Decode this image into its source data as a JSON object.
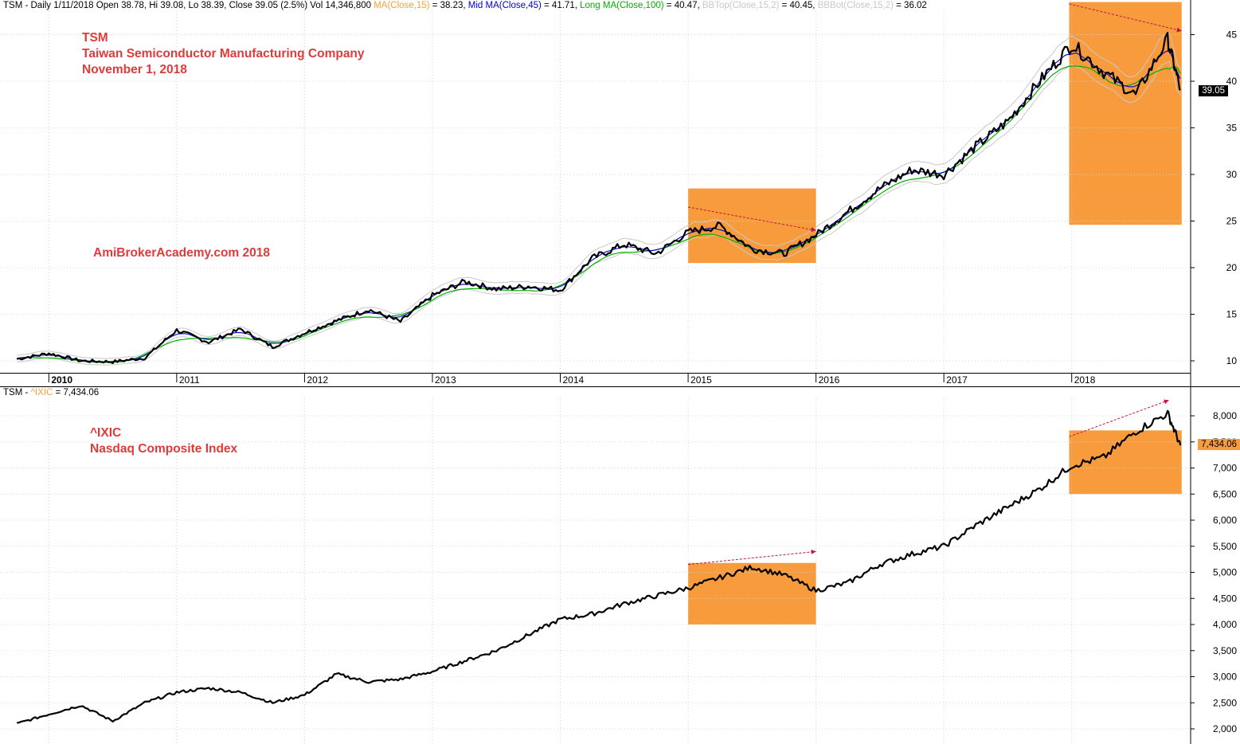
{
  "colors": {
    "background": "#ffffff",
    "price": "#000000",
    "ma_short": "#f7a135",
    "ma_mid": "#0000cc",
    "ma_long": "#00b000",
    "bollinger": "#c8c8c8",
    "highlight": "#f79b3c",
    "trend_arrow": "#c0154a",
    "annotation": "#e03b3b"
  },
  "header": {
    "ticker": "TSM",
    "info": " - Daily 1/11/2018 Open 38.78, Hi 39.08, Lo 38.39, Close 39.05 (2.5%) Vol 14,346,800 ",
    "ma_short_label": "MA(Close,15)",
    "ma_short_value": " = 38.23, ",
    "ma_mid_label": "Mid MA(Close,45)",
    "ma_mid_value": " = 41.71, ",
    "ma_long_label": "Long MA(Close,100)",
    "ma_long_value": " = 40.47, ",
    "bbtop_label": "BBTop(Close,15,2)",
    "bbtop_value": " = 40.45, ",
    "bbbot_label": "BBBot(Close,15,2)",
    "bbbot_value": " = 36.02"
  },
  "header2": {
    "ticker": "TSM - ",
    "symbol": "^IXIC",
    "value": " = 7,434.06"
  },
  "annotations": {
    "tsm_line1": "TSM",
    "tsm_line2": "Taiwan Semiconductor Manufacturing Company",
    "tsm_line3": "November 1, 2018",
    "watermark": "AmiBrokerAcademy.com  2018",
    "ixic_line1": "^IXIC",
    "ixic_line2": "Nasdaq Composite Index"
  },
  "last_value_tags": {
    "tsm": "39.05",
    "ixic": "7,434.06"
  },
  "chart_data": [
    {
      "type": "line",
      "name": "TSM",
      "x_tick_labels": [
        "2010",
        "2011",
        "2012",
        "2013",
        "2014",
        "2015",
        "2016",
        "2017",
        "2018"
      ],
      "y_ticks": [
        10,
        15,
        20,
        25,
        30,
        35,
        40,
        45
      ],
      "ylim": [
        8,
        48.5
      ],
      "grid": true,
      "series": [
        {
          "name": "",
          "x": [
            2009.75,
            2010.0,
            2010.25,
            2010.5,
            2010.75,
            2011.0,
            2011.25,
            2011.5,
            2011.75,
            2012.0,
            2012.25,
            2012.5,
            2012.75,
            2013.0,
            2013.25,
            2013.5,
            2013.75,
            2014.0,
            2014.25,
            2014.5,
            2014.75,
            2015.0,
            2015.25,
            2015.5,
            2015.75,
            2016.0,
            2016.25,
            2016.5,
            2016.75,
            2017.0,
            2017.25,
            2017.5,
            2017.75,
            2018.0,
            2018.25,
            2018.5,
            2018.75,
            2018.85
          ],
          "values": [
            10.2,
            10.8,
            10.0,
            9.9,
            10.3,
            13.3,
            12.0,
            13.4,
            11.5,
            13.0,
            14.3,
            15.5,
            14.2,
            17.0,
            18.5,
            17.7,
            18.0,
            17.6,
            21.0,
            22.5,
            21.5,
            23.8,
            24.5,
            22.0,
            21.5,
            23.5,
            26.0,
            28.5,
            30.5,
            30.0,
            33.0,
            35.7,
            40.0,
            44.0,
            41.0,
            38.5,
            44.5,
            39.05
          ]
        }
      ]
    },
    {
      "type": "line",
      "name": "^IXIC",
      "x_tick_labels": [],
      "y_ticks": [
        2000,
        2500,
        3000,
        3500,
        4000,
        4500,
        5000,
        5500,
        6000,
        6500,
        7000,
        7500,
        8000
      ],
      "ylim": [
        1800,
        8400
      ],
      "grid": true,
      "series": [
        {
          "name": "",
          "x": [
            2009.75,
            2010.0,
            2010.25,
            2010.5,
            2010.75,
            2011.0,
            2011.25,
            2011.5,
            2011.75,
            2012.0,
            2012.25,
            2012.5,
            2012.75,
            2013.0,
            2013.25,
            2013.5,
            2013.75,
            2014.0,
            2014.25,
            2014.5,
            2014.75,
            2015.0,
            2015.25,
            2015.5,
            2015.75,
            2016.0,
            2016.25,
            2016.5,
            2016.75,
            2017.0,
            2017.25,
            2017.5,
            2017.75,
            2018.0,
            2018.25,
            2018.5,
            2018.75,
            2018.85
          ],
          "values": [
            2100,
            2280,
            2450,
            2150,
            2500,
            2700,
            2780,
            2700,
            2500,
            2650,
            3050,
            2900,
            2950,
            3100,
            3300,
            3500,
            3800,
            4100,
            4200,
            4400,
            4550,
            4700,
            4900,
            5100,
            4950,
            4650,
            4800,
            5150,
            5350,
            5500,
            5900,
            6250,
            6600,
            7050,
            7200,
            7700,
            8050,
            7434.06
          ]
        }
      ]
    }
  ],
  "highlights": [
    {
      "x_start": 2015.0,
      "x_end": 2016.0,
      "tsm_y": [
        20.5,
        28.5
      ],
      "ixic_y": [
        4000,
        5180
      ]
    },
    {
      "x_start": 2017.98,
      "x_end": 2018.86,
      "tsm_y": [
        24.6,
        48.5
      ],
      "ixic_y": [
        6500,
        7720
      ]
    }
  ],
  "trend_arrows": [
    {
      "panel": "tsm",
      "from": [
        2015.0,
        26.5
      ],
      "to": [
        2016.0,
        24.0
      ]
    },
    {
      "panel": "tsm",
      "from": [
        2017.98,
        48.3
      ],
      "to": [
        2018.86,
        45.4
      ]
    },
    {
      "panel": "ixic",
      "from": [
        2015.0,
        5150
      ],
      "to": [
        2016.0,
        5400
      ]
    },
    {
      "panel": "ixic",
      "from": [
        2017.98,
        7600
      ],
      "to": [
        2018.76,
        8300
      ]
    }
  ]
}
